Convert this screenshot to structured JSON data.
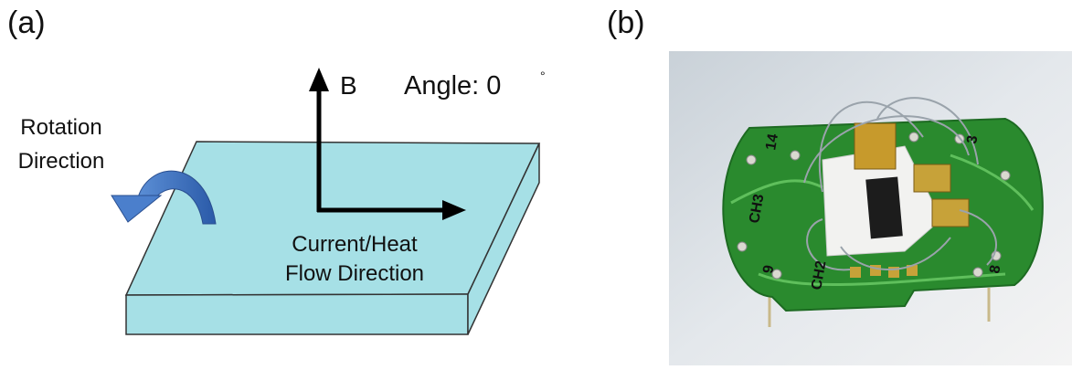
{
  "panel_a": {
    "label": "(a)",
    "field_label": "B",
    "angle_label": "Angle: 0",
    "degree_symbol": "°",
    "rotation_label": [
      "Rotation",
      "Direction"
    ],
    "flow_label": [
      "Current/Heat",
      "Flow Direction"
    ]
  },
  "panel_b": {
    "label": "(b)",
    "board_labels": [
      "CH3",
      "CH2",
      "14",
      "3",
      "9",
      "8"
    ]
  }
}
